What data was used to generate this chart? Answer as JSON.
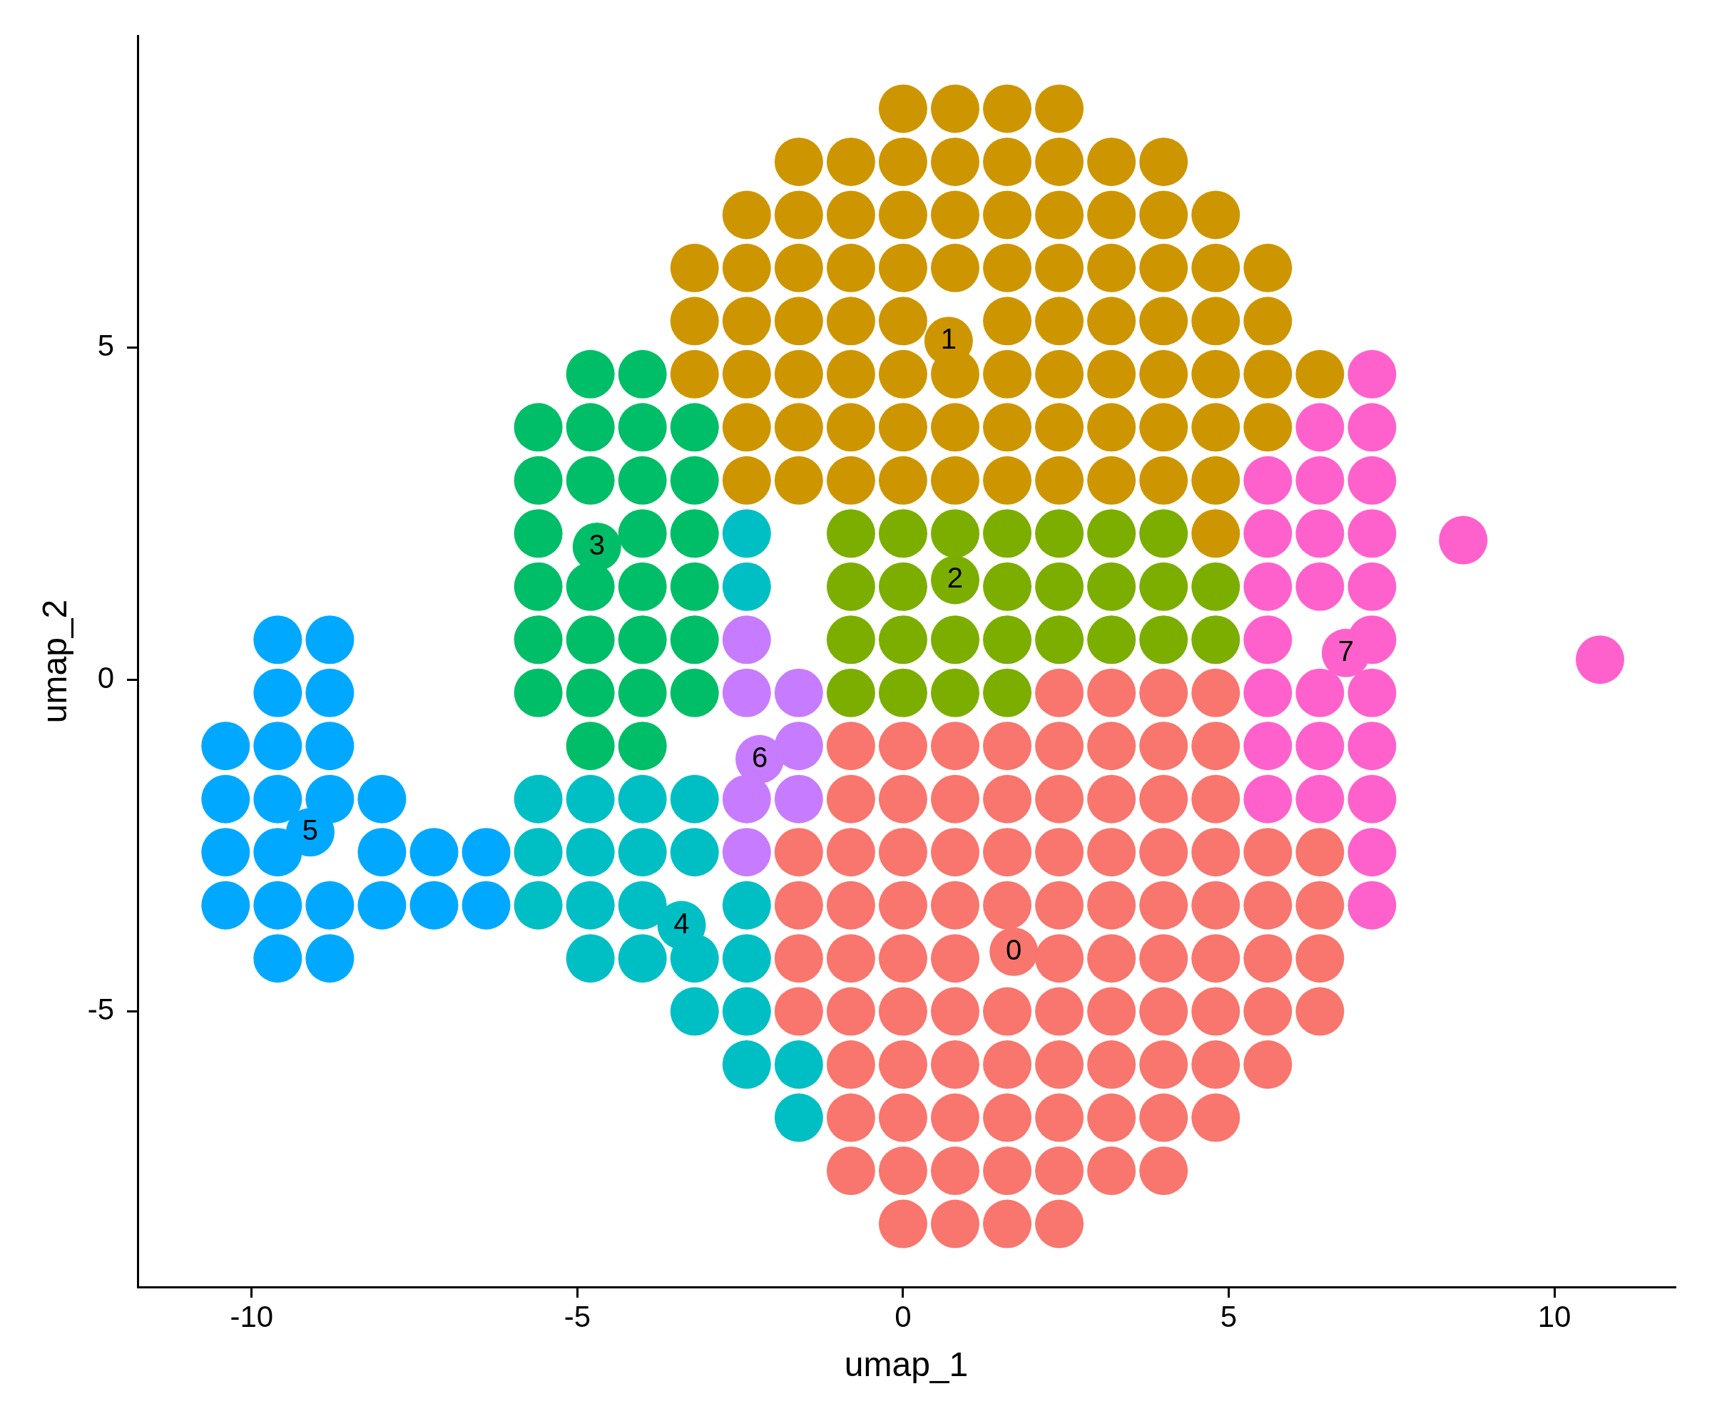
{
  "chart_data": {
    "type": "scatter",
    "xlabel": "umap_1",
    "ylabel": "umap_2",
    "xlim": [
      -11.75,
      11.85
    ],
    "ylim": [
      -9.15,
      9.7
    ],
    "xticks": [
      -10,
      -5,
      0,
      5,
      10
    ],
    "yticks": [
      -5,
      0,
      5
    ],
    "marker": "circle",
    "series": [
      {
        "color": "#f8766d",
        "x": [
          2.4,
          3.2,
          4,
          4.8,
          -0.8,
          0,
          0.8,
          1.6,
          2.4,
          3.2,
          4,
          4.8,
          -0.8,
          0,
          0.8,
          1.6,
          2.4,
          3.2,
          4,
          4.8,
          -1.6,
          -0.8,
          0,
          0.8,
          1.6,
          2.4,
          3.2,
          4,
          4.8,
          5.6,
          6.4,
          -1.6,
          -0.8,
          0,
          0.8,
          1.6,
          2.4,
          3.2,
          4,
          4.8,
          5.6,
          6.4,
          -1.6,
          -0.8,
          0,
          0.8,
          1.7,
          2.4,
          3.2,
          4,
          4.8,
          5.6,
          6.4,
          -1.6,
          -0.8,
          0,
          0.8,
          1.6,
          2.4,
          3.2,
          4,
          4.8,
          5.6,
          6.4,
          -0.8,
          0,
          0.8,
          1.6,
          2.4,
          3.2,
          4,
          4.8,
          5.6,
          -0.8,
          0,
          0.8,
          1.6,
          2.4,
          3.2,
          4,
          4.8,
          -0.8,
          0,
          0.8,
          1.6,
          2.4,
          3.2,
          4,
          0,
          0.8,
          1.6,
          2.4
        ],
        "values": [
          -0.2,
          -0.2,
          -0.2,
          -0.2,
          -1,
          -1,
          -1,
          -1,
          -1,
          -1,
          -1,
          -1,
          -1.8,
          -1.8,
          -1.8,
          -1.8,
          -1.8,
          -1.8,
          -1.8,
          -1.8,
          -2.6,
          -2.6,
          -2.6,
          -2.6,
          -2.6,
          -2.6,
          -2.6,
          -2.6,
          -2.6,
          -2.6,
          -2.6,
          -3.4,
          -3.4,
          -3.4,
          -3.4,
          -3.4,
          -3.4,
          -3.4,
          -3.4,
          -3.4,
          -3.4,
          -3.4,
          -4.2,
          -4.2,
          -4.2,
          -4.2,
          -4.1,
          -4.2,
          -4.2,
          -4.2,
          -4.2,
          -4.2,
          -4.2,
          -5,
          -5,
          -5,
          -5,
          -5,
          -5,
          -5,
          -5,
          -5,
          -5,
          -5,
          -5.8,
          -5.8,
          -5.8,
          -5.8,
          -5.8,
          -5.8,
          -5.8,
          -5.8,
          -5.8,
          -6.6,
          -6.6,
          -6.6,
          -6.6,
          -6.6,
          -6.6,
          -6.6,
          -6.6,
          -7.4,
          -7.4,
          -7.4,
          -7.4,
          -7.4,
          -7.4,
          -7.4,
          -8.2,
          -8.2,
          -8.2,
          -8.2
        ]
      },
      {
        "color": "#cd9600",
        "x": [
          0,
          0.8,
          1.6,
          2.4,
          -1.6,
          -0.8,
          0,
          0.8,
          1.6,
          2.4,
          3.2,
          4,
          -2.4,
          -1.6,
          -0.8,
          0,
          0.8,
          1.6,
          2.4,
          3.2,
          4,
          4.8,
          -3.2,
          -2.4,
          -1.6,
          -0.8,
          0,
          0.8,
          1.6,
          2.4,
          3.2,
          4,
          4.8,
          5.6,
          -3.2,
          -2.4,
          -1.6,
          -0.8,
          0,
          0.7,
          1.6,
          2.4,
          3.2,
          4,
          4.8,
          5.6,
          -3.2,
          -2.4,
          -1.6,
          -0.8,
          0,
          0.8,
          1.6,
          2.4,
          3.2,
          4,
          4.8,
          5.6,
          6.4,
          -2.4,
          -1.6,
          -0.8,
          0,
          0.8,
          1.6,
          2.4,
          3.2,
          4,
          4.8,
          5.6,
          -2.4,
          -1.6,
          -0.8,
          0,
          0.8,
          1.6,
          2.4,
          3.2,
          4,
          4.8,
          4.8
        ],
        "values": [
          8.6,
          8.6,
          8.6,
          8.6,
          7.8,
          7.8,
          7.8,
          7.8,
          7.8,
          7.8,
          7.8,
          7.8,
          7,
          7,
          7,
          7,
          7,
          7,
          7,
          7,
          7,
          7,
          6.2,
          6.2,
          6.2,
          6.2,
          6.2,
          6.2,
          6.2,
          6.2,
          6.2,
          6.2,
          6.2,
          6.2,
          5.4,
          5.4,
          5.4,
          5.4,
          5.4,
          5.1,
          5.4,
          5.4,
          5.4,
          5.4,
          5.4,
          5.4,
          4.6,
          4.6,
          4.6,
          4.6,
          4.6,
          4.6,
          4.6,
          4.6,
          4.6,
          4.6,
          4.6,
          4.6,
          4.6,
          3.8,
          3.8,
          3.8,
          3.8,
          3.8,
          3.8,
          3.8,
          3.8,
          3.8,
          3.8,
          3.8,
          3,
          3,
          3,
          3,
          3,
          3,
          3,
          3,
          3,
          3,
          2.2
        ]
      },
      {
        "color": "#7cae00",
        "x": [
          -0.8,
          0,
          0.8,
          1.6,
          2.4,
          3.2,
          4,
          -0.8,
          0,
          0.8,
          1.6,
          2.4,
          3.2,
          4,
          4.8,
          -0.8,
          0,
          0.8,
          1.6,
          2.4,
          3.2,
          4,
          4.8,
          -0.8,
          0,
          0.8,
          1.6
        ],
        "values": [
          2.2,
          2.2,
          2.2,
          2.2,
          2.2,
          2.2,
          2.2,
          1.4,
          1.4,
          1.5,
          1.4,
          1.4,
          1.4,
          1.4,
          1.4,
          0.6,
          0.6,
          0.6,
          0.6,
          0.6,
          0.6,
          0.6,
          0.6,
          -0.2,
          -0.2,
          -0.2,
          -0.2
        ]
      },
      {
        "color": "#00be67",
        "x": [
          -4.8,
          -4,
          -5.6,
          -4.8,
          -4,
          -3.2,
          -5.6,
          -4.8,
          -4,
          -3.2,
          -5.6,
          -4.7,
          -4,
          -3.2,
          -5.6,
          -4.8,
          -4,
          -3.2,
          -5.6,
          -4.8,
          -4,
          -3.2,
          -5.6,
          -4.8,
          -4,
          -3.2,
          -4.8,
          -4
        ],
        "values": [
          4.6,
          4.6,
          3.8,
          3.8,
          3.8,
          3.8,
          3,
          3,
          3,
          3,
          2.2,
          2.0,
          2.2,
          2.2,
          1.4,
          1.4,
          1.4,
          1.4,
          0.6,
          0.6,
          0.6,
          0.6,
          -0.2,
          -0.2,
          -0.2,
          -0.2,
          -1,
          -1
        ]
      },
      {
        "color": "#00bfc4",
        "x": [
          -2.4,
          -2.4,
          -5.6,
          -4.8,
          -4,
          -3.2,
          -5.6,
          -4.8,
          -4,
          -3.2,
          -5.6,
          -4.8,
          -4,
          -3.4,
          -2.4,
          -4.8,
          -4,
          -3.2,
          -2.4,
          -3.2,
          -2.4,
          -2.4,
          -1.6,
          -1.6
        ],
        "values": [
          2.2,
          1.4,
          -1.8,
          -1.8,
          -1.8,
          -1.8,
          -2.6,
          -2.6,
          -2.6,
          -2.6,
          -3.4,
          -3.4,
          -3.4,
          -3.7,
          -3.4,
          -4.2,
          -4.2,
          -4.2,
          -4.2,
          -5,
          -5,
          -5.8,
          -5.8,
          -6.6
        ]
      },
      {
        "color": "#00a9ff",
        "x": [
          -9.6,
          -8.8,
          -9.6,
          -8.8,
          -10.4,
          -9.6,
          -8.8,
          -10.4,
          -9.6,
          -8.8,
          -8,
          -10.4,
          -9.6,
          -9.1,
          -8,
          -7.2,
          -6.4,
          -10.4,
          -9.6,
          -8.8,
          -8,
          -7.2,
          -6.4,
          -9.6,
          -8.8
        ],
        "values": [
          0.6,
          0.6,
          -0.2,
          -0.2,
          -1,
          -1,
          -1,
          -1.8,
          -1.8,
          -1.8,
          -1.8,
          -2.6,
          -2.6,
          -2.3,
          -2.6,
          -2.6,
          -2.6,
          -3.4,
          -3.4,
          -3.4,
          -3.4,
          -3.4,
          -3.4,
          -4.2,
          -4.2
        ]
      },
      {
        "color": "#c77cff",
        "x": [
          -2.4,
          -2.4,
          -1.6,
          -2.2,
          -1.6,
          -2.4,
          -1.6,
          -2.4
        ],
        "values": [
          0.6,
          -0.2,
          -0.2,
          -1.2,
          -1,
          -1.8,
          -1.8,
          -2.6
        ]
      },
      {
        "color": "#ff61cc",
        "x": [
          7.2,
          6.4,
          7.2,
          5.6,
          6.4,
          7.2,
          5.6,
          6.4,
          7.2,
          5.6,
          6.4,
          7.2,
          5.6,
          6.8,
          7.2,
          5.6,
          6.4,
          7.2,
          5.6,
          6.4,
          7.2,
          5.6,
          6.4,
          7.2,
          7.2,
          7.2,
          8.6,
          10.7
        ],
        "values": [
          4.6,
          3.8,
          3.8,
          3,
          3,
          3,
          2.2,
          2.2,
          2.2,
          1.4,
          1.4,
          1.4,
          0.6,
          0.4,
          0.6,
          -0.2,
          -0.2,
          -0.2,
          -1,
          -1,
          -1,
          -1.8,
          -1.8,
          -1.8,
          -2.6,
          -3.4,
          2.1,
          0.3
        ]
      }
    ],
    "annotations": [
      {
        "text": "0",
        "x": 1.7,
        "y": -4.1
      },
      {
        "text": "1",
        "x": 0.7,
        "y": 5.1
      },
      {
        "text": "2",
        "x": 0.8,
        "y": 1.5
      },
      {
        "text": "3",
        "x": -4.7,
        "y": 2.0
      },
      {
        "text": "4",
        "x": -3.4,
        "y": -3.7
      },
      {
        "text": "5",
        "x": -9.1,
        "y": -2.3
      },
      {
        "text": "6",
        "x": -2.2,
        "y": -1.2
      },
      {
        "text": "7",
        "x": 6.8,
        "y": 0.4
      }
    ]
  }
}
